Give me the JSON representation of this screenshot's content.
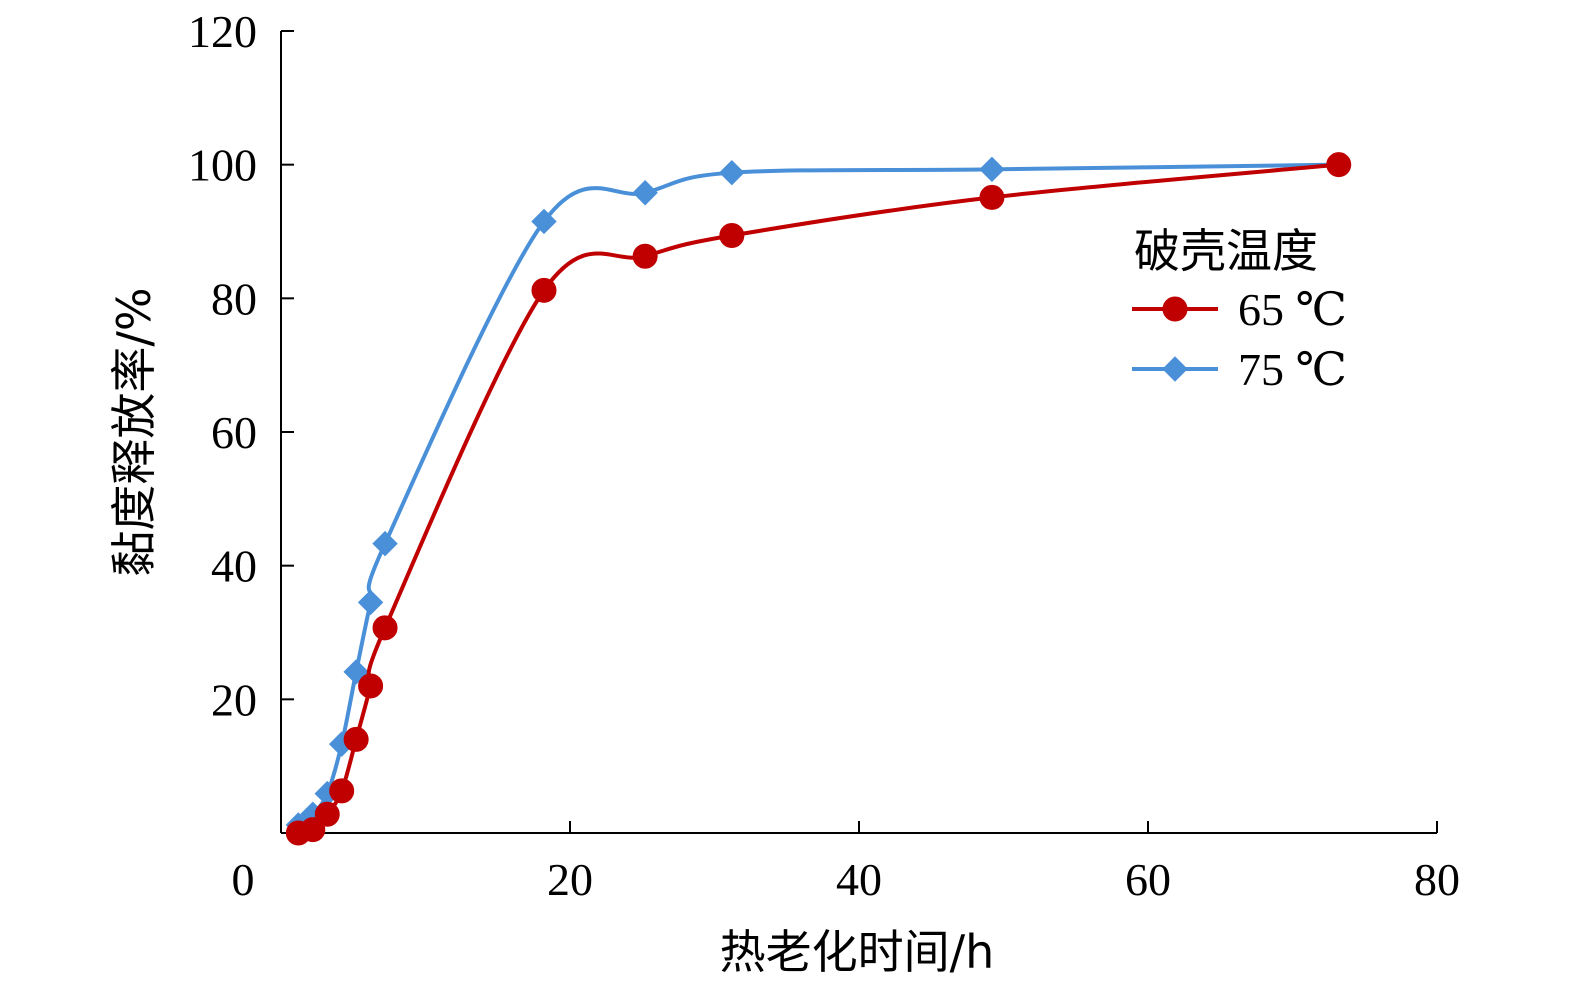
{
  "chart_data": {
    "type": "line",
    "xlabel": "热老化时间/h",
    "ylabel": "黏度释放率/%",
    "xlim": [
      0,
      80
    ],
    "ylim": [
      0,
      120
    ],
    "x_ticks": [
      0,
      20,
      40,
      60,
      80
    ],
    "y_ticks": [
      20,
      40,
      60,
      80,
      100,
      120
    ],
    "grid": false,
    "legend": {
      "title": "破壳温度",
      "position": "right"
    },
    "series": [
      {
        "name": "65 ℃",
        "color": "#c00000",
        "marker": "circle",
        "x": [
          0,
          1,
          2,
          3,
          4,
          5,
          6,
          17,
          24,
          30,
          48,
          72
        ],
        "y": [
          0,
          0.5,
          2.8,
          6.3,
          14,
          22,
          30.7,
          81.2,
          86.3,
          89.4,
          95.1,
          100
        ]
      },
      {
        "name": "75 ℃",
        "color": "#4a90d9",
        "marker": "diamond",
        "x": [
          0,
          1,
          2,
          3,
          4,
          5,
          6,
          17,
          24,
          30,
          48,
          72
        ],
        "y": [
          1.2,
          2.8,
          5.9,
          13.3,
          24.1,
          34.5,
          43.3,
          91.5,
          95.8,
          98.8,
          99.3,
          100
        ]
      }
    ]
  }
}
